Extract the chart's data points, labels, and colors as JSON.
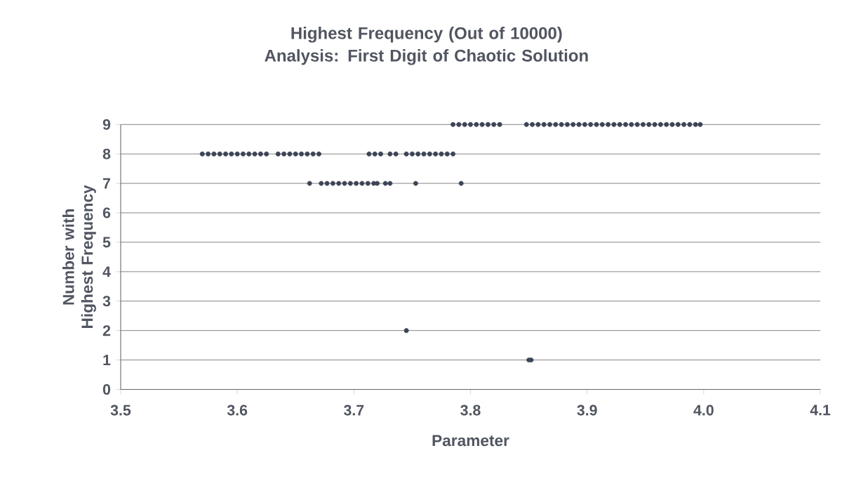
{
  "chart_data": {
    "type": "scatter",
    "title": "Highest Frequency (Out of 10000) Analysis: First Digit of Chaotic Solution",
    "xlabel": "Parameter",
    "ylabel": "Number with Highest Frequency",
    "series": [
      {
        "color": "#3d4456",
        "x": [
          3.57,
          3.575,
          3.58,
          3.585,
          3.59,
          3.595,
          3.6,
          3.605,
          3.61,
          3.615,
          3.62,
          3.625,
          3.635,
          3.64,
          3.645,
          3.65,
          3.655,
          3.66,
          3.665,
          3.67,
          3.713,
          3.718,
          3.723,
          3.731,
          3.736,
          3.745,
          3.75,
          3.755,
          3.76,
          3.765,
          3.77,
          3.775,
          3.78,
          3.785,
          3.662,
          3.672,
          3.677,
          3.682,
          3.687,
          3.692,
          3.697,
          3.702,
          3.707,
          3.712,
          3.717,
          3.72,
          3.727,
          3.731,
          3.753,
          3.792,
          3.785,
          3.79,
          3.795,
          3.8,
          3.805,
          3.81,
          3.815,
          3.82,
          3.825,
          3.848,
          3.853,
          3.858,
          3.863,
          3.868,
          3.873,
          3.878,
          3.883,
          3.888,
          3.893,
          3.898,
          3.903,
          3.908,
          3.913,
          3.918,
          3.923,
          3.928,
          3.933,
          3.938,
          3.943,
          3.948,
          3.953,
          3.958,
          3.963,
          3.968,
          3.973,
          3.978,
          3.983,
          3.988,
          3.993,
          3.997,
          3.745,
          3.85,
          3.852
        ],
        "values": [
          8,
          8,
          8,
          8,
          8,
          8,
          8,
          8,
          8,
          8,
          8,
          8,
          8,
          8,
          8,
          8,
          8,
          8,
          8,
          8,
          8,
          8,
          8,
          8,
          8,
          8,
          8,
          8,
          8,
          8,
          8,
          8,
          8,
          8,
          7,
          7,
          7,
          7,
          7,
          7,
          7,
          7,
          7,
          7,
          7,
          7,
          7,
          7,
          7,
          7,
          9,
          9,
          9,
          9,
          9,
          9,
          9,
          9,
          9,
          9,
          9,
          9,
          9,
          9,
          9,
          9,
          9,
          9,
          9,
          9,
          9,
          9,
          9,
          9,
          9,
          9,
          9,
          9,
          9,
          9,
          9,
          9,
          9,
          9,
          9,
          9,
          9,
          9,
          9,
          9,
          2,
          1,
          1
        ]
      }
    ],
    "xlim": [
      3.5,
      4.1
    ],
    "xticks": [
      3.5,
      3.6,
      3.7,
      3.8,
      3.9,
      {
        "value": 4.0,
        "label": "4.0"
      },
      4.1
    ],
    "ylim": [
      0,
      9
    ],
    "yticks": [
      0,
      1,
      2,
      3,
      4,
      5,
      6,
      7,
      8,
      9
    ],
    "grid": "y",
    "marker": "circle"
  }
}
